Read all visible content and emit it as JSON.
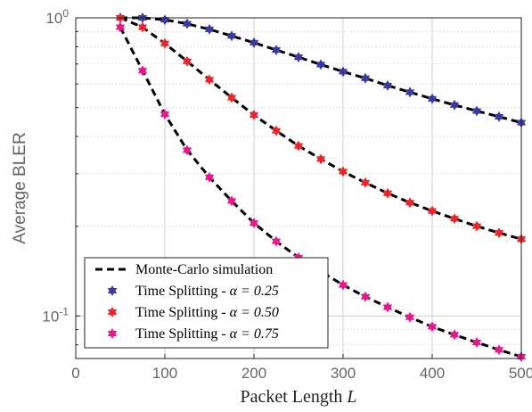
{
  "chart_data": {
    "type": "line",
    "title": "",
    "xlabel": "Packet Length",
    "xlabel_var": "L",
    "ylabel": "Average BLER",
    "xlim": [
      0,
      500
    ],
    "ylim": [
      0.072,
      1.0
    ],
    "yscale": "log",
    "grid": true,
    "legend_position": "bottom-left",
    "xticks": [
      "0",
      "100",
      "200",
      "300",
      "400",
      "500"
    ],
    "yticks": [
      {
        "value": 1.0,
        "base": "10",
        "exp": "0"
      },
      {
        "value": 0.1,
        "base": "10",
        "exp": "-1"
      }
    ],
    "x": [
      50,
      75,
      100,
      125,
      150,
      175,
      200,
      225,
      250,
      275,
      300,
      325,
      350,
      375,
      400,
      425,
      450,
      475,
      500
    ],
    "series": [
      {
        "name": "Time Splitting - α = 0.25",
        "label_prefix": "Time Splitting - ",
        "label_math": "α = 0.25",
        "color": "#3b3aa0",
        "values": [
          1.0,
          1.0,
          0.985,
          0.955,
          0.915,
          0.87,
          0.825,
          0.78,
          0.738,
          0.697,
          0.66,
          0.627,
          0.593,
          0.563,
          0.535,
          0.51,
          0.487,
          0.466,
          0.445
        ]
      },
      {
        "name": "Time Splitting - α = 0.50",
        "label_prefix": "Time Splitting - ",
        "label_math": "α = 0.50",
        "color": "#e8262b",
        "values": [
          1.0,
          0.93,
          0.82,
          0.715,
          0.62,
          0.54,
          0.472,
          0.418,
          0.372,
          0.336,
          0.305,
          0.28,
          0.258,
          0.24,
          0.225,
          0.212,
          0.2,
          0.19,
          0.181
        ]
      },
      {
        "name": "Time Splitting - α = 0.75",
        "label_prefix": "Time Splitting - ",
        "label_math": "α = 0.75",
        "color": "#e8188c",
        "values": [
          0.93,
          0.665,
          0.475,
          0.36,
          0.292,
          0.243,
          0.205,
          0.178,
          0.157,
          0.141,
          0.127,
          0.116,
          0.107,
          0.099,
          0.092,
          0.0865,
          0.0815,
          0.077,
          0.073
        ]
      }
    ],
    "reference": {
      "name": "Monte-Carlo simulation",
      "color": "#000000",
      "style": "dashed"
    }
  }
}
